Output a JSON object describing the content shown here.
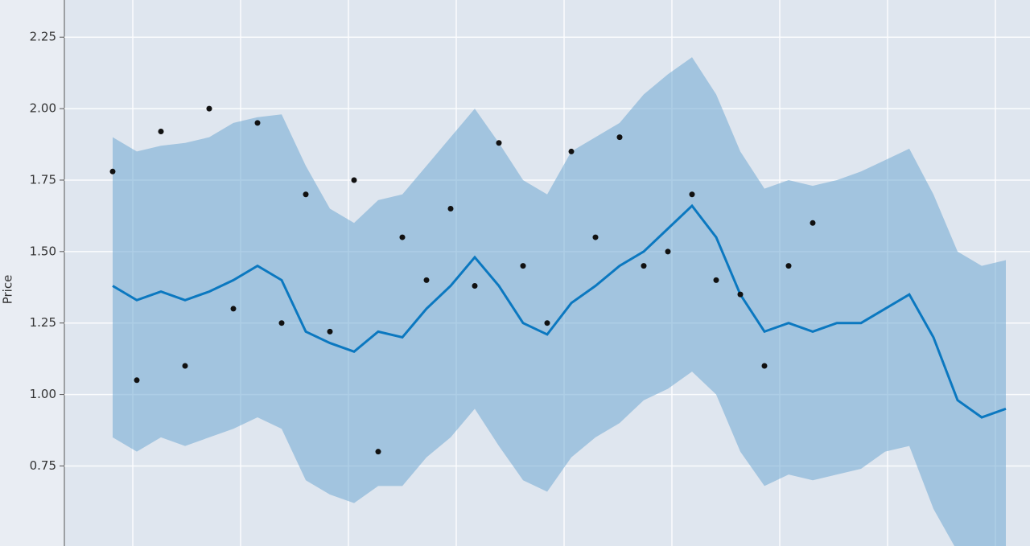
{
  "chart_data": {
    "type": "line",
    "ylabel": "Price",
    "ylim": [
      0.47,
      2.38
    ],
    "yticks": [
      2.25,
      {
        "value": 2.0,
        "label": "2.00"
      },
      1.75,
      {
        "value": 1.5,
        "label": "1.50"
      },
      1.25,
      {
        "value": 1.0,
        "label": "1.00"
      },
      0.75
    ],
    "grid": true,
    "categories": [
      null,
      null,
      null,
      null,
      null,
      null,
      null,
      null,
      null,
      null,
      null,
      null,
      null,
      null,
      null,
      null,
      null,
      null,
      null,
      null,
      null,
      null,
      null,
      null,
      null,
      null,
      null,
      null,
      null,
      null,
      null,
      null,
      null,
      null,
      null,
      null,
      null,
      null
    ],
    "band": {
      "color": "#6fa8d2",
      "upper": [
        1.9,
        1.85,
        1.87,
        1.88,
        1.9,
        1.95,
        1.97,
        1.98,
        1.8,
        1.65,
        1.6,
        1.68,
        1.7,
        1.8,
        1.9,
        2.0,
        1.88,
        1.75,
        1.7,
        1.85,
        1.9,
        1.95,
        2.05,
        2.12,
        2.18,
        2.05,
        1.85,
        1.72,
        1.75,
        1.73,
        1.75,
        1.78,
        1.82,
        1.86,
        1.7,
        1.5,
        1.45,
        1.47
      ],
      "lower": [
        0.85,
        0.8,
        0.85,
        0.82,
        0.85,
        0.88,
        0.92,
        0.88,
        0.7,
        0.65,
        0.62,
        0.68,
        0.68,
        0.78,
        0.85,
        0.95,
        0.82,
        0.7,
        0.66,
        0.78,
        0.85,
        0.9,
        0.98,
        1.02,
        1.08,
        1.0,
        0.8,
        0.68,
        0.72,
        0.7,
        0.72,
        0.74,
        0.8,
        0.82,
        0.6,
        0.45,
        0.4,
        0.45
      ]
    },
    "forecast": {
      "color": "#0b78c0",
      "values": [
        1.38,
        1.33,
        1.36,
        1.33,
        1.36,
        1.4,
        1.45,
        1.4,
        1.22,
        1.18,
        1.15,
        1.22,
        1.2,
        1.3,
        1.38,
        1.48,
        1.38,
        1.25,
        1.21,
        1.32,
        1.38,
        1.45,
        1.5,
        1.58,
        1.66,
        1.55,
        1.35,
        1.22,
        1.25,
        1.22,
        1.25,
        1.25,
        1.3,
        1.35,
        1.2,
        0.98,
        0.92,
        0.95
      ]
    },
    "observed": {
      "color": "#111111",
      "values": [
        1.78,
        1.05,
        1.92,
        1.1,
        2.0,
        1.3,
        1.95,
        1.25,
        1.7,
        1.22,
        1.75,
        0.8,
        1.55,
        1.4,
        1.65,
        1.38,
        1.88,
        1.45,
        1.25,
        1.85,
        1.55,
        1.9,
        1.45,
        1.5,
        1.7,
        1.4,
        1.35,
        1.1,
        1.45,
        1.6,
        null,
        null,
        null,
        null,
        null,
        null,
        null,
        null
      ]
    }
  }
}
